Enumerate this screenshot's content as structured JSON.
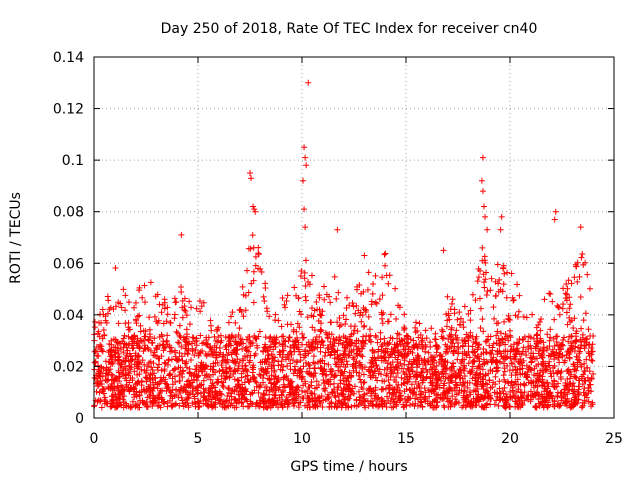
{
  "chart_data": {
    "type": "scatter",
    "title": "Day 250 of 2018, Rate Of TEC Index for receiver cn40",
    "xlabel": "GPS time / hours",
    "ylabel": "ROTI / TECUs",
    "xlim": [
      0,
      25
    ],
    "ylim": [
      0,
      0.14
    ],
    "x_ticks": [
      0,
      5,
      10,
      15,
      20,
      25
    ],
    "x_tick_labels": [
      "0",
      "5",
      "10",
      "15",
      "20",
      "25"
    ],
    "y_ticks": [
      0,
      0.02,
      0.04,
      0.06,
      0.08,
      0.1,
      0.12,
      0.14
    ],
    "y_tick_labels": [
      "0",
      "0.02",
      "0.04",
      "0.06",
      "0.08",
      "0.1",
      "0.12",
      "0.14"
    ],
    "grid": true,
    "marker": "+",
    "series": [
      {
        "name": "ROTI",
        "color": "#ff0000",
        "envelope": {
          "x": [
            0,
            0.5,
            0.8,
            1.0,
            1.5,
            2.0,
            2.5,
            3.0,
            3.5,
            4.0,
            4.3,
            4.5,
            5.0,
            5.3,
            5.5,
            6.0,
            6.5,
            7.0,
            7.5,
            7.8,
            8.0,
            8.5,
            9.0,
            9.5,
            10.0,
            10.2,
            10.5,
            11.0,
            11.5,
            12.0,
            12.5,
            13.0,
            13.5,
            14.0,
            14.5,
            15.0,
            15.5,
            16.0,
            16.5,
            17.0,
            17.5,
            18.0,
            18.5,
            18.7,
            19.0,
            19.5,
            20.0,
            20.5,
            21.0,
            21.5,
            22.0,
            22.5,
            23.0,
            23.5,
            24.0
          ],
          "typical_max": [
            0.04,
            0.044,
            0.05,
            0.06,
            0.048,
            0.048,
            0.055,
            0.05,
            0.045,
            0.048,
            0.06,
            0.05,
            0.045,
            0.058,
            0.04,
            0.035,
            0.04,
            0.045,
            0.07,
            0.075,
            0.06,
            0.045,
            0.05,
            0.05,
            0.06,
            0.062,
            0.055,
            0.05,
            0.065,
            0.045,
            0.05,
            0.06,
            0.055,
            0.065,
            0.05,
            0.04,
            0.04,
            0.038,
            0.032,
            0.05,
            0.042,
            0.045,
            0.06,
            0.07,
            0.055,
            0.065,
            0.058,
            0.05,
            0.04,
            0.045,
            0.05,
            0.055,
            0.06,
            0.065,
            0.045
          ]
        },
        "extreme_points": [
          [
            4.2,
            0.071
          ],
          [
            7.5,
            0.095
          ],
          [
            7.55,
            0.093
          ],
          [
            7.65,
            0.082
          ],
          [
            7.7,
            0.081
          ],
          [
            7.75,
            0.08
          ],
          [
            10.1,
            0.105
          ],
          [
            10.15,
            0.101
          ],
          [
            10.2,
            0.098
          ],
          [
            10.05,
            0.092
          ],
          [
            10.1,
            0.081
          ],
          [
            10.15,
            0.074
          ],
          [
            10.3,
            0.13
          ],
          [
            11.7,
            0.073
          ],
          [
            13.0,
            0.063
          ],
          [
            18.7,
            0.101
          ],
          [
            18.65,
            0.092
          ],
          [
            18.7,
            0.088
          ],
          [
            18.75,
            0.082
          ],
          [
            18.8,
            0.078
          ],
          [
            18.9,
            0.073
          ],
          [
            19.6,
            0.078
          ],
          [
            19.55,
            0.073
          ],
          [
            22.2,
            0.08
          ],
          [
            22.15,
            0.077
          ],
          [
            23.4,
            0.074
          ],
          [
            16.8,
            0.065
          ]
        ]
      }
    ]
  }
}
